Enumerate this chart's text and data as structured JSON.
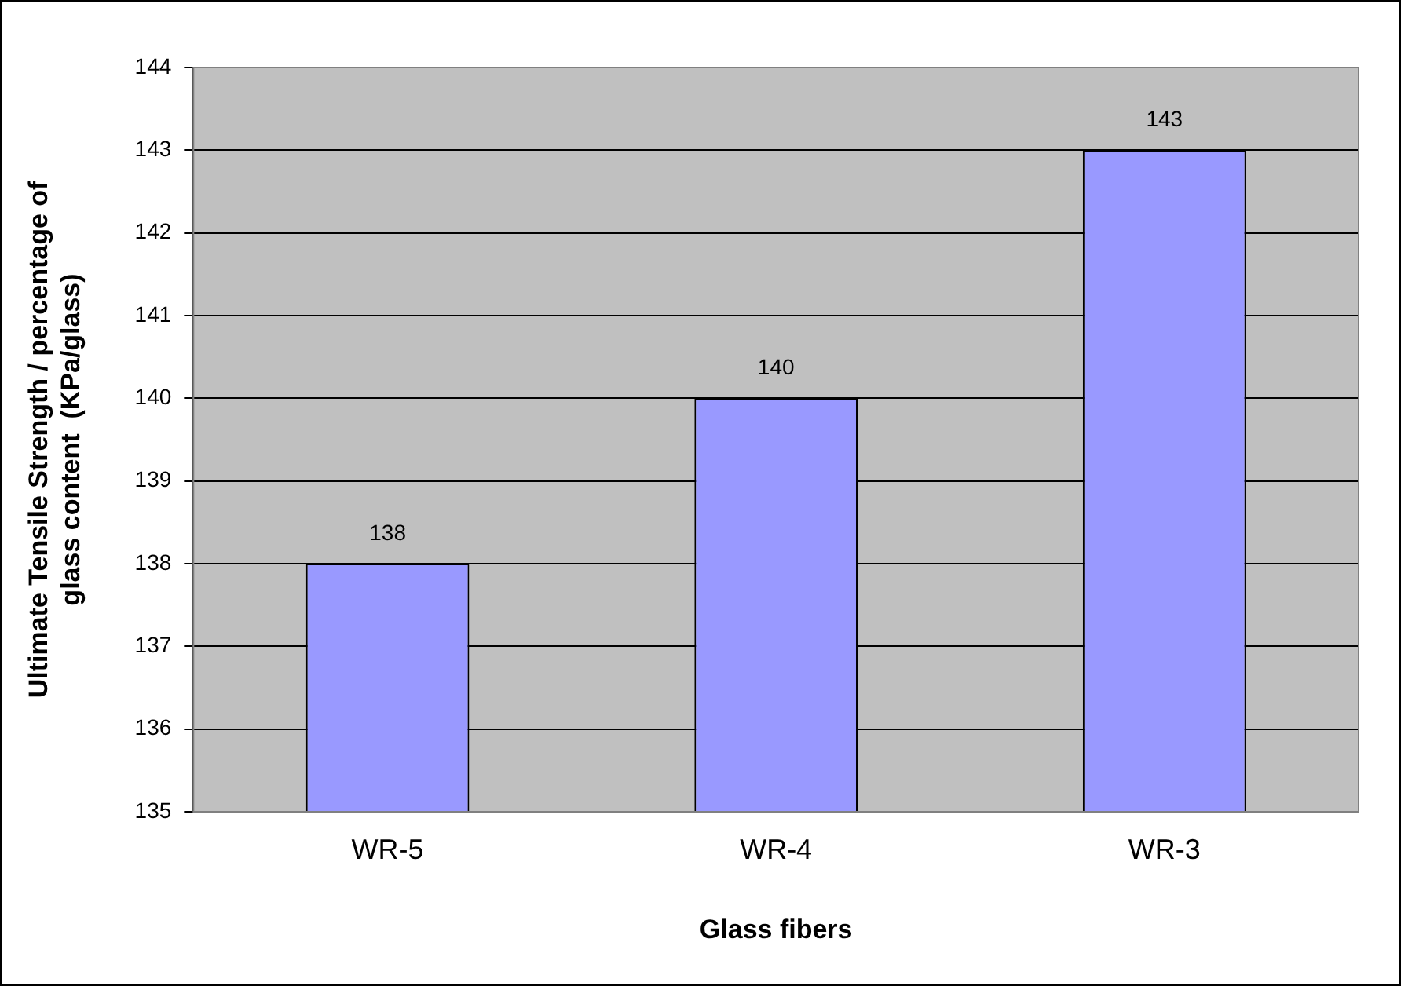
{
  "chart_data": {
    "type": "bar",
    "xlabel": "Glass fibers",
    "ylabel": "Ultimate Tensile Strength / percentage of\nglass content  (KPa/glass)",
    "categories": [
      "WR-5",
      "WR-4",
      "WR-3"
    ],
    "values": [
      138,
      140,
      143
    ],
    "color": "#9999ff",
    "ylim": [
      135,
      144
    ],
    "yticks": [
      135,
      136,
      137,
      138,
      139,
      140,
      141,
      142,
      143,
      144
    ],
    "grid": "y",
    "data_labels": true,
    "legend": false
  }
}
